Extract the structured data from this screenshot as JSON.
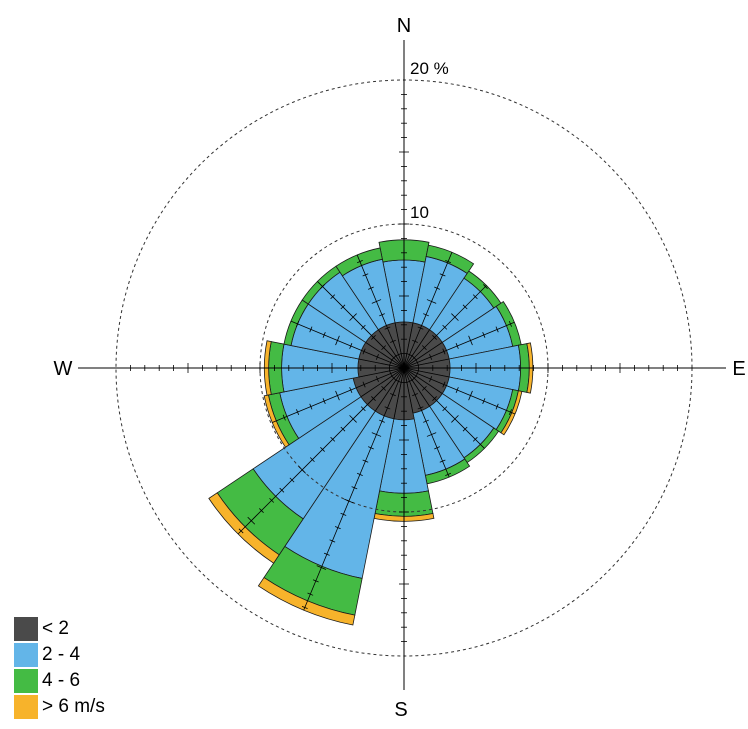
{
  "chart_data": {
    "type": "wind-rose",
    "directions": [
      "N",
      "NNE",
      "NE",
      "ENE",
      "E",
      "ESE",
      "SE",
      "SSE",
      "S",
      "SSW",
      "SW",
      "WSW",
      "W",
      "WNW",
      "NW",
      "NNW"
    ],
    "compass_labels": {
      "n": "N",
      "e": "E",
      "s": "S",
      "w": "W"
    },
    "unit": "%",
    "rings": [
      {
        "value": 10,
        "label": "10"
      },
      {
        "value": 20,
        "label": "20 %"
      }
    ],
    "rmax": 20,
    "series": [
      {
        "name": "< 2",
        "color": "#4a4a4a",
        "values": [
          3.2,
          3.2,
          3.2,
          3.2,
          3.2,
          3.2,
          3.2,
          3.2,
          3.6,
          3.6,
          3.6,
          3.6,
          3.2,
          3.2,
          3.2,
          3.2
        ]
      },
      {
        "name": "2 - 4",
        "color": "#63b5e8",
        "values": [
          4.3,
          4.7,
          4.3,
          4.5,
          4.9,
          4.5,
          4.3,
          4.4,
          5.1,
          11.3,
          9.0,
          5.2,
          5.3,
          4.8,
          4.8,
          4.5
        ]
      },
      {
        "name": "4 - 6",
        "color": "#44bb44",
        "values": [
          1.4,
          0.8,
          0.6,
          0.6,
          0.6,
          0.4,
          0.4,
          0.6,
          1.6,
          2.6,
          3.0,
          0.8,
          0.9,
          0.5,
          0.5,
          0.8
        ]
      },
      {
        "name": "> 6 m/s",
        "color": "#f7b32b",
        "values": [
          0,
          0,
          0,
          0,
          0.25,
          0.25,
          0,
          0,
          0.35,
          0.7,
          0.7,
          0.3,
          0.3,
          0,
          0,
          0
        ]
      }
    ]
  },
  "legend": [
    {
      "label": "< 2",
      "color": "#4a4a4a"
    },
    {
      "label": "2 - 4",
      "color": "#63b5e8"
    },
    {
      "label": "4 - 6",
      "color": "#44bb44"
    },
    {
      "label": "> 6 m/s",
      "color": "#f7b32b"
    }
  ]
}
